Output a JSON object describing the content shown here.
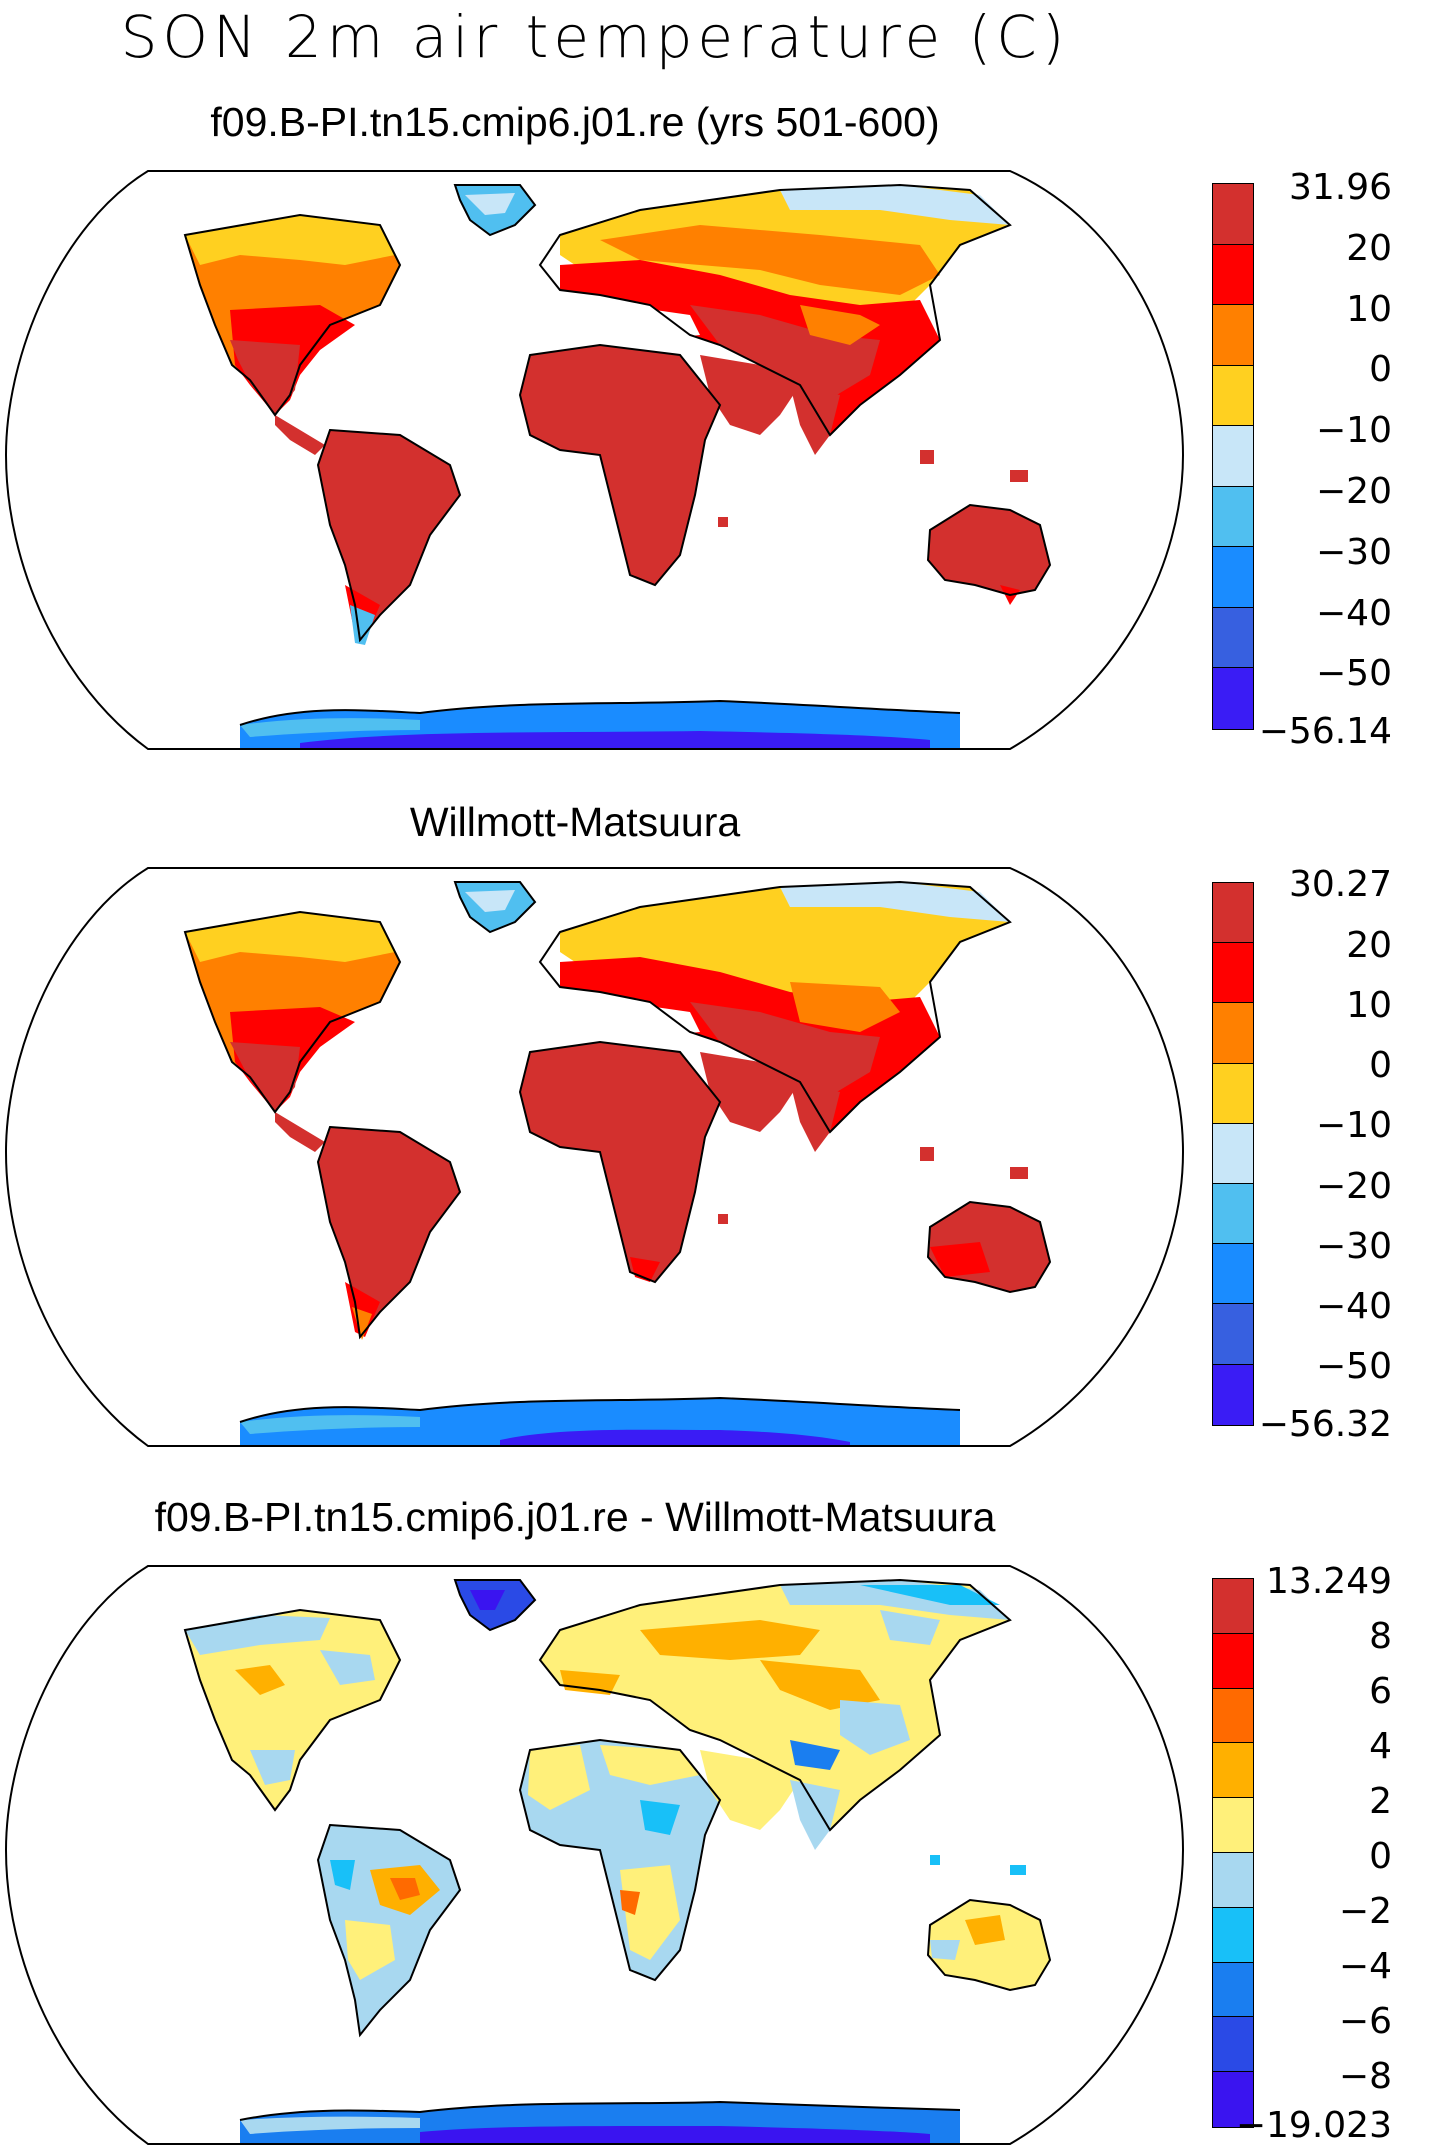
{
  "title": "SON 2m air temperature (C)",
  "colors": {
    "temp": [
      "#d3302e",
      "#ff0000",
      "#ff8000",
      "#ffd020",
      "#c8e6f8",
      "#50bff0",
      "#1a8cff",
      "#3760e0",
      "#3a1cf5"
    ],
    "diff": [
      "#d3302e",
      "#ff0000",
      "#ff6a00",
      "#ffb000",
      "#fff07a",
      "#a8d8f0",
      "#18c0f8",
      "#1a7ef0",
      "#2a4ae6",
      "#3a14f0"
    ]
  },
  "panels": [
    {
      "title": "f09.B-PI.tn15.cmip6.j01.re (yrs 501-600)",
      "colorbar": [
        "31.96",
        "20",
        "10",
        "0",
        "−10",
        "−20",
        "−30",
        "−40",
        "−50",
        "−56.14"
      ]
    },
    {
      "title": "Willmott-Matsuura",
      "colorbar": [
        "30.27",
        "20",
        "10",
        "0",
        "−10",
        "−20",
        "−30",
        "−40",
        "−50",
        "−56.32"
      ]
    },
    {
      "title": "f09.B-PI.tn15.cmip6.j01.re - Willmott-Matsuura",
      "colorbar": [
        "13.249",
        "8",
        "6",
        "4",
        "2",
        "0",
        "−2",
        "−4",
        "−6",
        "−8",
        "−19.023"
      ]
    }
  ]
}
